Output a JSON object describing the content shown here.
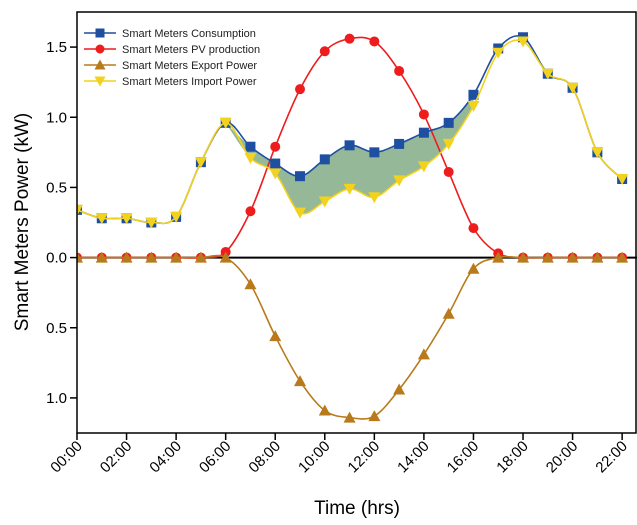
{
  "chart_data": {
    "type": "line",
    "xlabel": "Time (hrs)",
    "ylabel": "Smart Meters Power (kW)",
    "x_tick_labels": [
      "00:00",
      "02:00",
      "04:00",
      "06:00",
      "08:00",
      "10:00",
      "12:00",
      "14:00",
      "16:00",
      "18:00",
      "20:00",
      "22:00"
    ],
    "y_ticks": [
      {
        "value": 1.5,
        "label": "1.5"
      },
      {
        "value": 1.0,
        "label": "1.0"
      },
      {
        "value": 0.5,
        "label": "0.5"
      },
      {
        "value": 0.0,
        "label": "0.0"
      },
      {
        "value": -0.5,
        "label": "0.5"
      },
      {
        "value": -1.0,
        "label": "1.0"
      }
    ],
    "xlim": [
      0,
      22.6
    ],
    "ylim": [
      -1.25,
      1.75
    ],
    "legend_position": "top-left",
    "x": [
      0,
      1,
      2,
      3,
      4,
      5,
      6,
      7,
      8,
      9,
      10,
      11,
      12,
      13,
      14,
      15,
      16,
      17,
      18,
      19,
      20,
      21,
      22
    ],
    "series": [
      {
        "name": "Smart Meters Consumption",
        "color": "#1f4fa0",
        "marker": "square",
        "values": [
          0.34,
          0.28,
          0.28,
          0.25,
          0.29,
          0.68,
          0.96,
          0.79,
          0.67,
          0.58,
          0.7,
          0.8,
          0.75,
          0.81,
          0.89,
          0.96,
          1.16,
          1.49,
          1.57,
          1.31,
          1.21,
          0.75,
          0.56
        ]
      },
      {
        "name": "Smart Meters PV production",
        "color": "#ee1c1c",
        "marker": "circle",
        "values": [
          0,
          0,
          0,
          0,
          0,
          0,
          0.04,
          0.33,
          0.79,
          1.2,
          1.47,
          1.56,
          1.54,
          1.33,
          1.02,
          0.61,
          0.21,
          0.03,
          0,
          0,
          0,
          0,
          0
        ]
      },
      {
        "name": "Smart Meters Export Power",
        "color": "#b87a1a",
        "marker": "triangle-up",
        "values": [
          0,
          0,
          0,
          0,
          0,
          0,
          0,
          -0.19,
          -0.56,
          -0.88,
          -1.09,
          -1.14,
          -1.13,
          -0.94,
          -0.69,
          -0.4,
          -0.08,
          0,
          0,
          0,
          0,
          0,
          0
        ]
      },
      {
        "name": "Smart Meters Import Power",
        "color": "#f2d21c",
        "marker": "triangle-down",
        "values": [
          0.34,
          0.28,
          0.28,
          0.25,
          0.29,
          0.68,
          0.96,
          0.71,
          0.6,
          0.32,
          0.4,
          0.49,
          0.43,
          0.55,
          0.65,
          0.81,
          1.08,
          1.46,
          1.54,
          1.31,
          1.21,
          0.75,
          0.56
        ]
      }
    ],
    "fill_between": {
      "upper_series": 0,
      "lower_series": 3,
      "from_index": 6,
      "to_index": 16,
      "color": "#8ab08e"
    }
  }
}
